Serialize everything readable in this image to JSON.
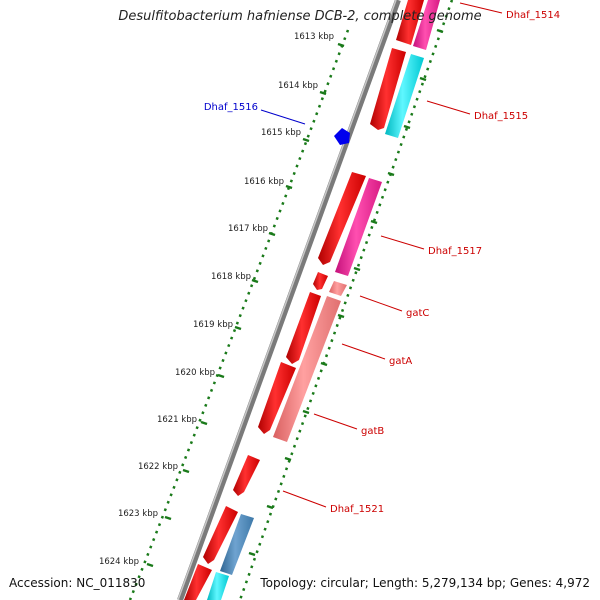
{
  "title": "Desulfitobacterium hafniense DCB-2, complete genome",
  "footer": {
    "accession": "Accession: NC_011830",
    "summary": "Topology: circular; Length: 5,279,134 bp; Genes: 4,972"
  },
  "ticks": [
    "1613 kbp",
    "1614 kbp",
    "1615 kbp",
    "1616 kbp",
    "1617 kbp",
    "1618 kbp",
    "1619 kbp",
    "1620 kbp",
    "1621 kbp",
    "1622 kbp",
    "1623 kbp",
    "1624 kbp"
  ],
  "features": [
    {
      "label": "Dhaf_1514",
      "color": "#cc0000"
    },
    {
      "label": "Dhaf_1515",
      "color": "#cc0000"
    },
    {
      "label": "Dhaf_1516",
      "color": "#0000cc"
    },
    {
      "label": "Dhaf_1517",
      "color": "#cc0000"
    },
    {
      "label": "gatC",
      "color": "#cc0000"
    },
    {
      "label": "gatA",
      "color": "#cc0000"
    },
    {
      "label": "gatB",
      "color": "#cc0000"
    },
    {
      "label": "Dhaf_1521",
      "color": "#cc0000"
    }
  ],
  "colors": {
    "cds": "#ff0000",
    "rrna_like": "#ff1493",
    "trna_like": "#00e5ee",
    "gat": "#f08080",
    "steel": "#4682b4",
    "backbone": "#808080",
    "ticks": "#1a7a1a"
  }
}
